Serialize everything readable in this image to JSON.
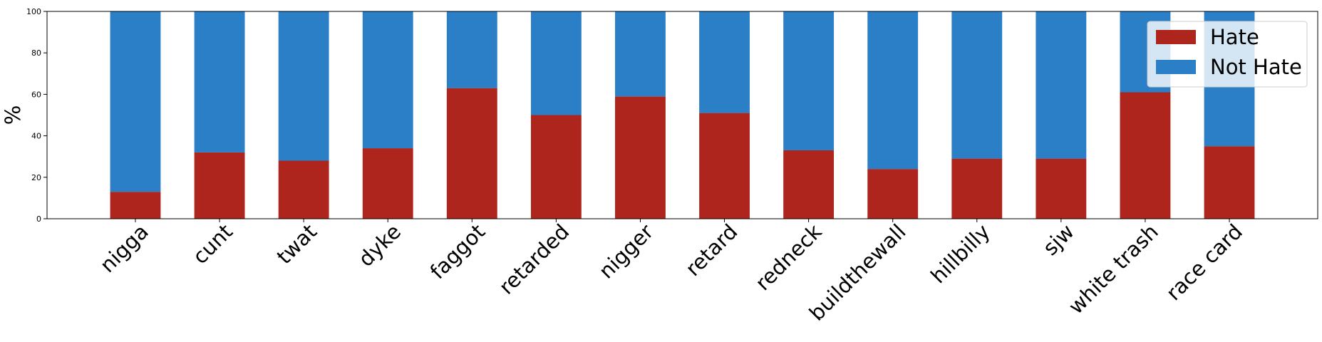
{
  "chart_data": {
    "type": "bar",
    "stacked": true,
    "categories": [
      "nigga",
      "cunt",
      "twat",
      "dyke",
      "faggot",
      "retarded",
      "nigger",
      "retard",
      "redneck",
      "buildthewall",
      "hillbilly",
      "sjw",
      "white trash",
      "race card"
    ],
    "series": [
      {
        "name": "Hate",
        "color": "#ae251d",
        "values": [
          13,
          32,
          28,
          34,
          63,
          50,
          59,
          51,
          33,
          24,
          29,
          29,
          61,
          35
        ]
      },
      {
        "name": "Not Hate",
        "color": "#2a7fc6",
        "values": [
          87,
          68,
          72,
          66,
          37,
          50,
          41,
          49,
          67,
          76,
          71,
          71,
          39,
          65
        ]
      }
    ],
    "title": "",
    "xlabel": "",
    "ylabel": "%",
    "ylim": [
      0,
      100
    ],
    "yticks": [
      "0",
      "20",
      "40",
      "60",
      "80",
      "100"
    ],
    "grid": false,
    "legend_position": "top-right"
  }
}
